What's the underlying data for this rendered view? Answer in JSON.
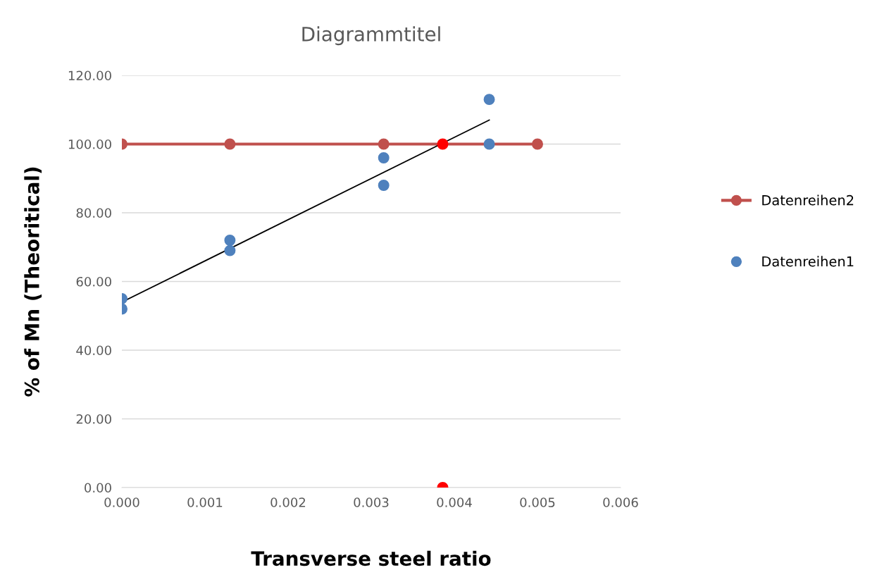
{
  "chart_data": {
    "type": "scatter",
    "title": "Diagrammtitel",
    "xlabel": "Transverse steel ratio",
    "ylabel": "% of Mn (Theoritical)",
    "series": [
      {
        "name": "Datenreihen2",
        "type": "line",
        "marker": "circle",
        "color": "#c0504d",
        "colors": [
          "#c0504d",
          "#c0504d",
          "#c0504d",
          "#ff0000",
          "#c0504d"
        ],
        "x": [
          0,
          0.0013,
          0.00315,
          0.00386,
          0.005
        ],
        "values": [
          100,
          100,
          100,
          100,
          100
        ]
      },
      {
        "name": "Datenreihen1",
        "marker": "circle",
        "color": "#4f81bd",
        "x": [
          0,
          0,
          0.0013,
          0.0013,
          0.00315,
          0.00315,
          0.00442,
          0.00442
        ],
        "values": [
          55,
          52,
          72,
          69,
          96,
          88,
          113,
          100
        ]
      },
      {
        "type": "line",
        "marker": "none",
        "color": "#000000",
        "x": [
          0,
          0.00442
        ],
        "values": [
          54,
          107
        ]
      },
      {
        "marker": "circle",
        "color": "#ff0000",
        "x": [
          0.00386
        ],
        "values": [
          0
        ]
      }
    ],
    "xlim": [
      0,
      0.006
    ],
    "xticks": [
      {
        "value": 0,
        "label": "0.000"
      },
      {
        "value": 0.001,
        "label": "0.001"
      },
      {
        "value": 0.002,
        "label": "0.002"
      },
      {
        "value": 0.003,
        "label": "0.003"
      },
      {
        "value": 0.004,
        "label": "0.004"
      },
      {
        "value": 0.005,
        "label": "0.005"
      },
      {
        "value": 0.006,
        "label": "0.006"
      }
    ],
    "ylim": [
      0,
      120
    ],
    "yticks": [
      {
        "value": 0,
        "label": "0.00"
      },
      {
        "value": 20,
        "label": "20.00"
      },
      {
        "value": 40,
        "label": "40.00"
      },
      {
        "value": 60,
        "label": "60.00"
      },
      {
        "value": 80,
        "label": "80.00"
      },
      {
        "value": 100,
        "label": "100.00"
      },
      {
        "value": 120,
        "label": "120.00"
      }
    ],
    "grid": "y",
    "legend": "right"
  }
}
